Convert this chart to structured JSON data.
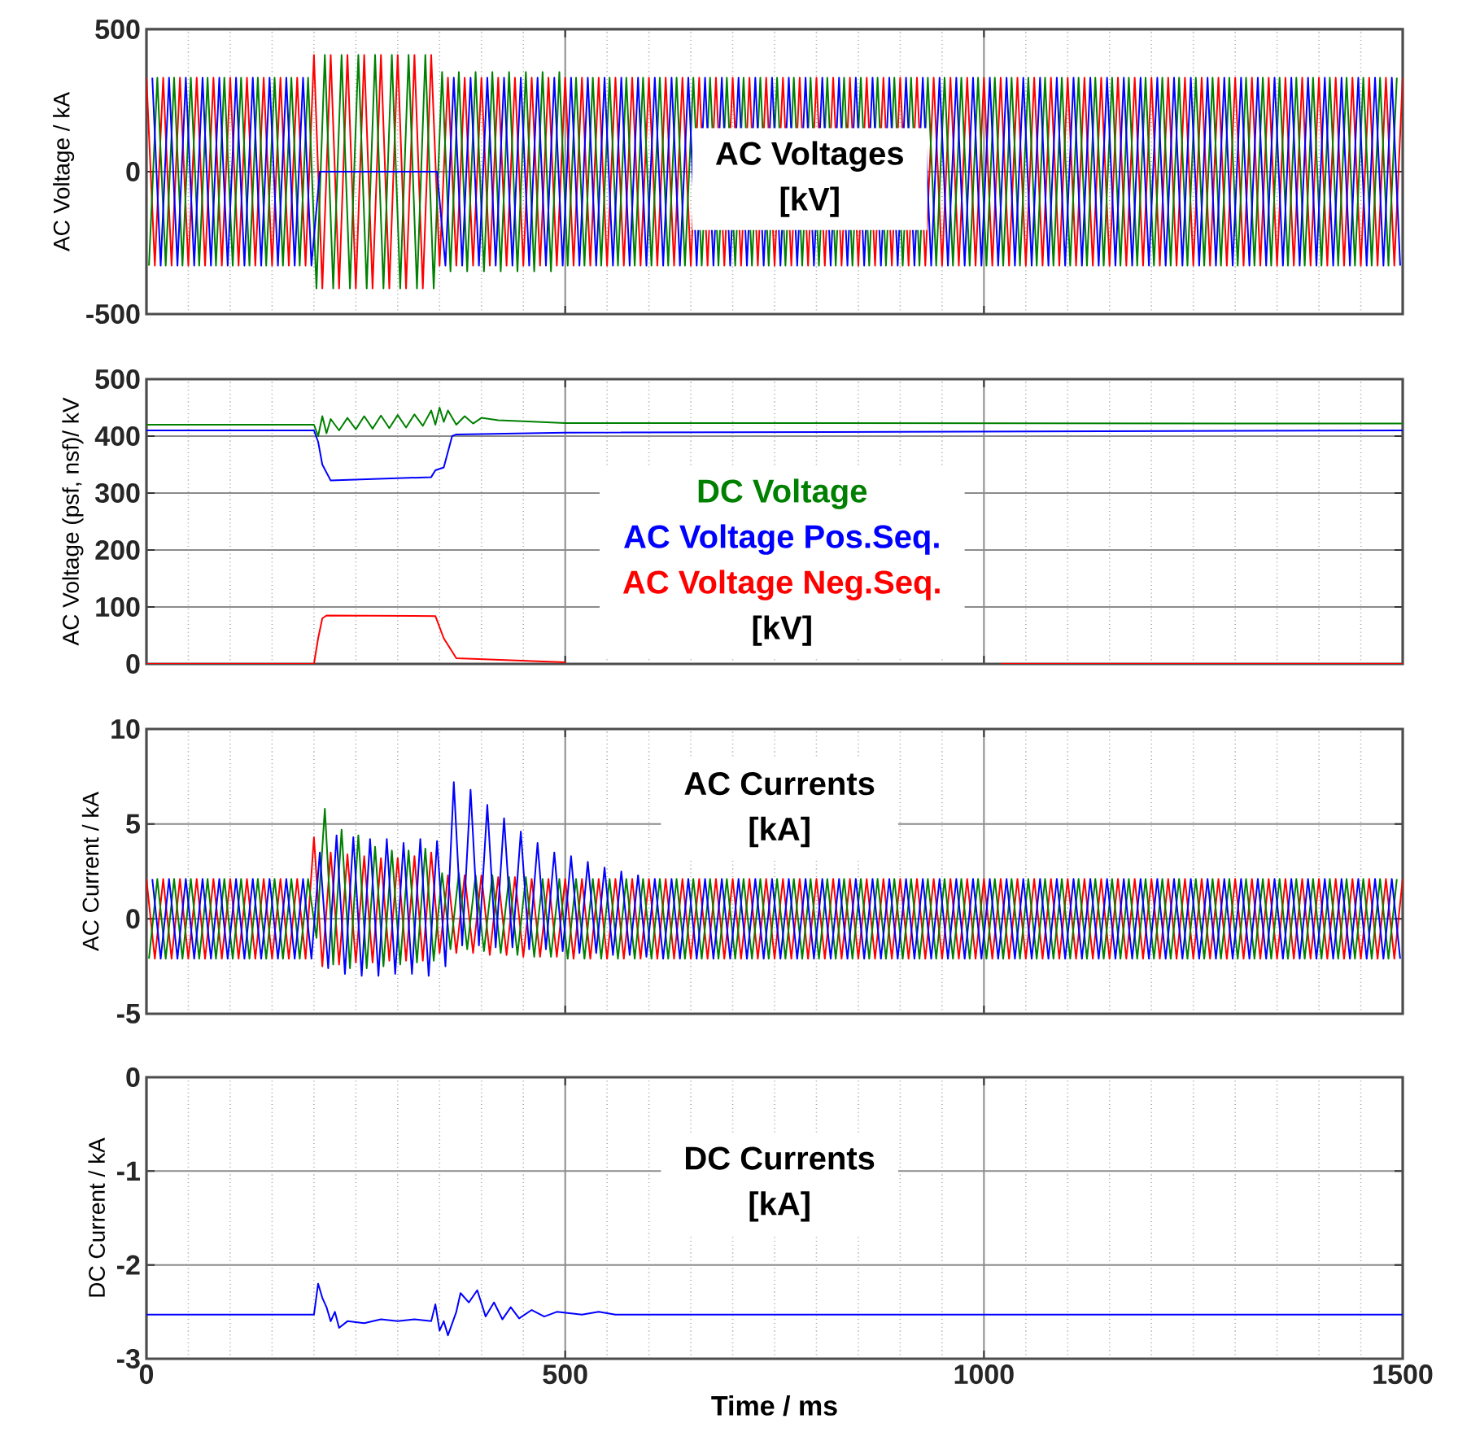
{
  "chart_data": [
    {
      "type": "line",
      "title": "AC Voltages",
      "annotations": [
        "[kV]"
      ],
      "ylabel": "AC Voltage / kA",
      "xlim": [
        0,
        1500
      ],
      "xticks": [
        0,
        500,
        1000,
        1500
      ],
      "ylim": [
        -500,
        500
      ],
      "yticks": [
        -500,
        0,
        500
      ],
      "grid": true,
      "tick_labels": "y",
      "series": [
        {
          "color": "#ff0000",
          "x": [
            0,
            10,
            20,
            30,
            40,
            50,
            60,
            70,
            80,
            90,
            100,
            110,
            120,
            130,
            140,
            150,
            160,
            170,
            180,
            190,
            200,
            210,
            220,
            230,
            240,
            250,
            260,
            270,
            280,
            290,
            300,
            310,
            320,
            330,
            340,
            350,
            360,
            370,
            380,
            390,
            400,
            410,
            420,
            430,
            440,
            450,
            460,
            470,
            480,
            490,
            500,
            510,
            520,
            530,
            540,
            550,
            560,
            570,
            580,
            590,
            600,
            610,
            620,
            630,
            640,
            650,
            660,
            670,
            680,
            690,
            700,
            710,
            720,
            730,
            740,
            750,
            760,
            770,
            780,
            790,
            800,
            810,
            820,
            830,
            840,
            850,
            860,
            870,
            880,
            890,
            900,
            910,
            920,
            930,
            940,
            950,
            960,
            970,
            980,
            990,
            1000,
            1010,
            1020,
            1030,
            1040,
            1050,
            1060,
            1070,
            1080,
            1090,
            1100,
            1110,
            1120,
            1130,
            1140,
            1150,
            1160,
            1170,
            1180,
            1190,
            1200,
            1210,
            1220,
            1230,
            1240,
            1250,
            1260,
            1270,
            1280,
            1290,
            1300,
            1310,
            1320,
            1330,
            1340,
            1350,
            1360,
            1370,
            1380,
            1390,
            1400,
            1410,
            1420,
            1430,
            1440,
            1450,
            1460,
            1470,
            1480,
            1490,
            1500
          ],
          "values": [
            330,
            -330,
            330,
            -330,
            330,
            -330,
            330,
            -330,
            330,
            -330,
            330,
            -330,
            330,
            -330,
            330,
            -330,
            330,
            -330,
            330,
            -330,
            410,
            -410,
            410,
            -410,
            410,
            -410,
            410,
            -410,
            410,
            -410,
            410,
            -410,
            410,
            -410,
            410,
            -330,
            330,
            -330,
            330,
            -330,
            330,
            -330,
            330,
            -330,
            330,
            -330,
            330,
            -330,
            330,
            -330,
            330,
            -330,
            330,
            -330,
            330,
            -330,
            330,
            -330,
            330,
            -330,
            330,
            -330,
            330,
            -330,
            330,
            -330,
            330,
            -330,
            330,
            -330,
            330,
            -330,
            330,
            -330,
            330,
            -330,
            330,
            -330,
            330,
            -330,
            330,
            -330,
            330,
            -330,
            330,
            -330,
            330,
            -330,
            330,
            -330,
            330,
            -330,
            330,
            -330,
            330,
            -330,
            330,
            -330,
            330,
            -330,
            330,
            -330,
            330,
            -330,
            330,
            -330,
            330,
            -330,
            330,
            -330,
            330,
            -330,
            330,
            -330,
            330,
            -330,
            330,
            -330,
            330,
            -330,
            330,
            -330,
            330,
            -330,
            330,
            -330,
            330,
            -330,
            330,
            -330,
            330,
            -330,
            330,
            -330,
            330,
            -330,
            330,
            -330,
            330,
            -330,
            330,
            -330,
            330,
            -330,
            330,
            -330,
            330,
            -330,
            330,
            -330,
            330
          ]
        },
        {
          "color": "#008000",
          "x": [
            3,
            13,
            23,
            33,
            43,
            53,
            63,
            73,
            83,
            93,
            103,
            113,
            123,
            133,
            143,
            153,
            163,
            173,
            183,
            193,
            203,
            213,
            223,
            233,
            243,
            253,
            263,
            273,
            283,
            293,
            303,
            313,
            323,
            333,
            343,
            353,
            363,
            373,
            383,
            393,
            403,
            413,
            423,
            433,
            443,
            453,
            463,
            473,
            483,
            493,
            503,
            513,
            523,
            533,
            543,
            553,
            563,
            573,
            583,
            593,
            603,
            613,
            623,
            633,
            643,
            653,
            663,
            673,
            683,
            693,
            703,
            713,
            723,
            733,
            743,
            753,
            763,
            773,
            783,
            793,
            803,
            813,
            823,
            833,
            843,
            853,
            863,
            873,
            883,
            893,
            903,
            913,
            923,
            933,
            943,
            953,
            963,
            973,
            983,
            993,
            1003,
            1013,
            1023,
            1033,
            1043,
            1053,
            1063,
            1073,
            1083,
            1093,
            1103,
            1113,
            1123,
            1133,
            1143,
            1153,
            1163,
            1173,
            1183,
            1193,
            1203,
            1213,
            1223,
            1233,
            1243,
            1253,
            1263,
            1273,
            1283,
            1293,
            1303,
            1313,
            1323,
            1333,
            1343,
            1353,
            1363,
            1373,
            1383,
            1393,
            1403,
            1413,
            1423,
            1433,
            1443,
            1453,
            1463,
            1473,
            1483,
            1493
          ],
          "values": [
            -330,
            330,
            -330,
            330,
            -330,
            330,
            -330,
            330,
            -330,
            330,
            -330,
            330,
            -330,
            330,
            -330,
            330,
            -330,
            330,
            -330,
            330,
            -410,
            410,
            -410,
            410,
            -410,
            410,
            -410,
            410,
            -410,
            410,
            -410,
            410,
            -410,
            410,
            -410,
            350,
            -350,
            350,
            -350,
            350,
            -350,
            350,
            -350,
            350,
            -350,
            350,
            -350,
            350,
            -350,
            350,
            -330,
            330,
            -330,
            330,
            -330,
            330,
            -330,
            330,
            -330,
            330,
            -330,
            330,
            -330,
            330,
            -330,
            330,
            -330,
            330,
            -330,
            330,
            -330,
            330,
            -330,
            330,
            -330,
            330,
            -330,
            330,
            -330,
            330,
            -330,
            330,
            -330,
            330,
            -330,
            330,
            -330,
            330,
            -330,
            330,
            -330,
            330,
            -330,
            330,
            -330,
            330,
            -330,
            330,
            -330,
            330,
            -330,
            330,
            -330,
            330,
            -330,
            330,
            -330,
            330,
            -330,
            330,
            -330,
            330,
            -330,
            330,
            -330,
            330,
            -330,
            330,
            -330,
            330,
            -330,
            330,
            -330,
            330,
            -330,
            330,
            -330,
            330,
            -330,
            330,
            -330,
            330,
            -330,
            330,
            -330,
            330,
            -330,
            330,
            -330,
            330,
            -330,
            330,
            -330,
            330,
            -330,
            330,
            -330,
            330,
            -330,
            330
          ]
        },
        {
          "color": "#0000ff",
          "x": [
            7,
            17,
            27,
            37,
            47,
            57,
            67,
            77,
            87,
            97,
            107,
            117,
            127,
            137,
            147,
            157,
            167,
            177,
            187,
            197,
            207,
            217,
            227,
            237,
            247,
            257,
            267,
            277,
            287,
            297,
            307,
            317,
            327,
            337,
            347,
            357,
            367,
            377,
            387,
            397,
            407,
            417,
            427,
            437,
            447,
            457,
            467,
            477,
            487,
            497,
            507,
            517,
            527,
            537,
            547,
            557,
            567,
            577,
            587,
            597,
            607,
            617,
            627,
            637,
            647,
            657,
            667,
            677,
            687,
            697,
            707,
            717,
            727,
            737,
            747,
            757,
            767,
            777,
            787,
            797,
            807,
            817,
            827,
            837,
            847,
            857,
            867,
            877,
            887,
            897,
            907,
            917,
            927,
            937,
            947,
            957,
            967,
            977,
            987,
            997,
            1007,
            1017,
            1027,
            1037,
            1047,
            1057,
            1067,
            1077,
            1087,
            1097,
            1107,
            1117,
            1127,
            1137,
            1147,
            1157,
            1167,
            1177,
            1187,
            1197,
            1207,
            1217,
            1227,
            1237,
            1247,
            1257,
            1267,
            1277,
            1287,
            1297,
            1307,
            1317,
            1327,
            1337,
            1347,
            1357,
            1367,
            1377,
            1387,
            1397,
            1407,
            1417,
            1427,
            1437,
            1447,
            1457,
            1467,
            1477,
            1487,
            1497
          ],
          "values": [
            330,
            -330,
            330,
            -330,
            330,
            -330,
            330,
            -330,
            330,
            -330,
            330,
            -330,
            330,
            -330,
            330,
            -330,
            330,
            -330,
            330,
            -330,
            0,
            0,
            0,
            0,
            0,
            0,
            0,
            0,
            0,
            0,
            0,
            0,
            0,
            0,
            0,
            -330,
            330,
            -330,
            330,
            -330,
            330,
            -330,
            330,
            -330,
            330,
            -330,
            330,
            -330,
            330,
            -330,
            330,
            -330,
            330,
            -330,
            330,
            -330,
            330,
            -330,
            330,
            -330,
            330,
            -330,
            330,
            -330,
            330,
            -330,
            330,
            -330,
            330,
            -330,
            330,
            -330,
            330,
            -330,
            330,
            -330,
            330,
            -330,
            330,
            -330,
            330,
            -330,
            330,
            -330,
            330,
            -330,
            330,
            -330,
            330,
            -330,
            330,
            -330,
            330,
            -330,
            330,
            -330,
            330,
            -330,
            330,
            -330,
            330,
            -330,
            330,
            -330,
            330,
            -330,
            330,
            -330,
            330,
            -330,
            330,
            -330,
            330,
            -330,
            330,
            -330,
            330,
            -330,
            330,
            -330,
            330,
            -330,
            330,
            -330,
            330,
            -330,
            330,
            -330,
            330,
            -330,
            330,
            -330,
            330,
            -330,
            330,
            -330,
            330,
            -330,
            330,
            -330,
            330,
            -330,
            330,
            -330,
            330,
            -330,
            330,
            -330,
            330,
            -330
          ]
        }
      ]
    },
    {
      "type": "line",
      "annotations": [
        "[kV]"
      ],
      "ylabel": "AC Voltage (psf, nsf)/ kV",
      "xlim": [
        0,
        1500
      ],
      "xticks": [
        0,
        500,
        1000,
        1500
      ],
      "ylim": [
        0,
        500
      ],
      "yticks": [
        0,
        100,
        200,
        300,
        400,
        500
      ],
      "grid": true,
      "tick_labels": "y",
      "series": [
        {
          "name": "DC Voltage",
          "color": "#008000",
          "x": [
            0,
            200,
            205,
            210,
            215,
            220,
            230,
            240,
            250,
            260,
            270,
            280,
            290,
            300,
            310,
            320,
            330,
            340,
            345,
            350,
            355,
            360,
            370,
            380,
            390,
            400,
            420,
            450,
            500,
            1500
          ],
          "values": [
            420,
            420,
            400,
            435,
            405,
            430,
            410,
            432,
            412,
            435,
            413,
            436,
            414,
            437,
            415,
            438,
            418,
            445,
            420,
            450,
            425,
            445,
            420,
            435,
            422,
            432,
            428,
            426,
            423,
            422
          ]
        },
        {
          "name": "AC Voltage Pos.Seq.",
          "color": "#0000ff",
          "x": [
            0,
            200,
            205,
            210,
            220,
            340,
            345,
            355,
            365,
            370,
            500,
            1500
          ],
          "values": [
            410,
            410,
            390,
            350,
            322,
            328,
            340,
            345,
            400,
            403,
            406,
            410
          ]
        },
        {
          "name": "AC Voltage Neg.Seq.",
          "color": "#ff0000",
          "x": [
            0,
            200,
            205,
            210,
            215,
            345,
            355,
            370,
            500,
            750,
            1020,
            1500
          ],
          "values": [
            0,
            0,
            45,
            80,
            85,
            84,
            45,
            10,
            3,
            null,
            0,
            0
          ]
        }
      ]
    },
    {
      "type": "line",
      "title": "AC Currents",
      "annotations": [
        "[kA]"
      ],
      "ylabel": "AC Current / kA",
      "xlim": [
        0,
        1500
      ],
      "xticks": [
        0,
        500,
        1000,
        1500
      ],
      "ylim": [
        -5,
        10
      ],
      "yticks": [
        -5,
        0,
        5,
        10
      ],
      "grid": true,
      "tick_labels": "y",
      "series": [
        {
          "color": "#ff0000",
          "x": [
            0,
            10,
            20,
            30,
            40,
            50,
            60,
            70,
            80,
            90,
            100,
            110,
            120,
            130,
            140,
            150,
            160,
            170,
            180,
            190,
            200,
            210,
            220,
            230,
            240,
            250,
            260,
            270,
            280,
            290,
            300,
            310,
            320,
            330,
            340,
            350,
            360,
            370,
            380,
            390,
            400,
            410,
            420,
            430,
            440,
            450,
            460,
            470,
            480,
            490,
            500,
            510,
            520,
            530,
            540,
            550,
            560,
            570,
            580,
            590,
            600,
            610,
            620,
            630,
            640,
            650,
            660,
            670,
            680,
            690,
            700,
            710,
            720,
            730,
            740,
            750,
            760,
            770,
            780,
            790,
            800,
            810,
            820,
            830,
            840,
            850,
            860,
            870,
            880,
            890,
            900,
            910,
            920,
            930,
            940,
            950,
            960,
            970,
            980,
            990,
            1000,
            1010,
            1020,
            1030,
            1040,
            1050,
            1060,
            1070,
            1080,
            1090,
            1100,
            1110,
            1120,
            1130,
            1140,
            1150,
            1160,
            1170,
            1180,
            1190,
            1200,
            1210,
            1220,
            1230,
            1240,
            1250,
            1260,
            1270,
            1280,
            1290,
            1300,
            1310,
            1320,
            1330,
            1340,
            1350,
            1360,
            1370,
            1380,
            1390,
            1400,
            1410,
            1420,
            1430,
            1440,
            1450,
            1460,
            1470,
            1480,
            1490,
            1500
          ],
          "values": [
            2.1,
            -2.1,
            2.1,
            -2.1,
            2.1,
            -2.1,
            2.1,
            -2.1,
            2.1,
            -2.1,
            2.1,
            -2.1,
            2.1,
            -2.1,
            2.1,
            -2.1,
            2.1,
            -2.1,
            2.1,
            -2.1,
            4.3,
            -2.5,
            3.5,
            -2.4,
            3.4,
            -2.3,
            3.3,
            -2.3,
            3.2,
            -2.2,
            3.2,
            -2.2,
            3.3,
            -2.2,
            3.5,
            -1.8,
            2.3,
            -1.8,
            2.3,
            -1.8,
            2.3,
            -1.9,
            2.2,
            -1.9,
            2.2,
            -2,
            2.1,
            -2,
            2.1,
            -2,
            2.1,
            -2.1,
            2.1,
            -2.1,
            2.1,
            -2.1,
            2.1,
            -2.1,
            2.1,
            -2.1,
            2.1,
            -2.1,
            2.1,
            -2.1,
            2.1,
            -2.1,
            2.1,
            -2.1,
            2.1,
            -2.1,
            2.1,
            -2.1,
            2.1,
            -2.1,
            2.1,
            -2.1,
            2.1,
            -2.1,
            2.1,
            -2.1,
            2.1,
            -2.1,
            2.1,
            -2.1,
            2.1,
            -2.1,
            2.1,
            -2.1,
            2.1,
            -2.1,
            2.1,
            -2.1,
            2.1,
            -2.1,
            2.1,
            -2.1,
            2.1,
            -2.1,
            2.1,
            -2.1,
            2.1,
            -2.1,
            2.1,
            -2.1,
            2.1,
            -2.1,
            2.1,
            -2.1,
            2.1,
            -2.1,
            2.1,
            -2.1,
            2.1,
            -2.1,
            2.1,
            -2.1,
            2.1,
            -2.1,
            2.1,
            -2.1,
            2.1,
            -2.1,
            2.1,
            -2.1,
            2.1,
            -2.1,
            2.1,
            -2.1,
            2.1,
            -2.1,
            2.1,
            -2.1,
            2.1,
            -2.1,
            2.1,
            -2.1,
            2.1,
            -2.1,
            2.1,
            -2.1,
            2.1,
            -2.1,
            2.1,
            -2.1,
            2.1,
            -2.1,
            2.1,
            -2.1,
            2.1,
            -2.1,
            2.1
          ]
        },
        {
          "color": "#008000",
          "x": [
            3,
            13,
            23,
            33,
            43,
            53,
            63,
            73,
            83,
            93,
            103,
            113,
            123,
            133,
            143,
            153,
            163,
            173,
            183,
            193,
            203,
            213,
            223,
            233,
            243,
            253,
            263,
            273,
            283,
            293,
            303,
            313,
            323,
            333,
            343,
            353,
            363,
            373,
            383,
            393,
            403,
            413,
            423,
            433,
            443,
            453,
            463,
            473,
            483,
            493,
            503,
            513,
            523,
            533,
            543,
            553,
            563,
            573,
            583,
            593,
            603,
            613,
            623,
            633,
            643,
            653,
            663,
            673,
            683,
            693,
            703,
            713,
            723,
            733,
            743,
            753,
            763,
            773,
            783,
            793,
            803,
            813,
            823,
            833,
            843,
            853,
            863,
            873,
            883,
            893,
            903,
            913,
            923,
            933,
            943,
            953,
            963,
            973,
            983,
            993,
            1003,
            1013,
            1023,
            1033,
            1043,
            1053,
            1063,
            1073,
            1083,
            1093,
            1103,
            1113,
            1123,
            1133,
            1143,
            1153,
            1163,
            1173,
            1183,
            1193,
            1203,
            1213,
            1223,
            1233,
            1243,
            1253,
            1263,
            1273,
            1283,
            1293,
            1303,
            1313,
            1323,
            1333,
            1343,
            1353,
            1363,
            1373,
            1383,
            1393,
            1403,
            1413,
            1423,
            1433,
            1443,
            1453,
            1463,
            1473,
            1483,
            1493
          ],
          "values": [
            -2.1,
            2.1,
            -2.1,
            2.1,
            -2.1,
            2.1,
            -2.1,
            2.1,
            -2.1,
            2.1,
            -2.1,
            2.1,
            -2.1,
            2.1,
            -2.1,
            2.1,
            -2.1,
            2.1,
            -2.1,
            2.1,
            -1,
            5.8,
            -2.4,
            4.7,
            -2.6,
            4.4,
            -2.6,
            3.8,
            -2.5,
            3.6,
            -2.4,
            3.6,
            -2.3,
            3.7,
            -2.2,
            2.4,
            -1.6,
            2.4,
            -1.6,
            2.3,
            -1.7,
            2.3,
            -1.8,
            2.2,
            -1.9,
            2.2,
            -2,
            2.1,
            -2,
            2.1,
            -2.1,
            2.1,
            -2.1,
            2.1,
            -2.1,
            2.1,
            -2.1,
            2.1,
            -2.1,
            2.1,
            -2.1,
            2.1,
            -2.1,
            2.1,
            -2.1,
            2.1,
            -2.1,
            2.1,
            -2.1,
            2.1,
            -2.1,
            2.1,
            -2.1,
            2.1,
            -2.1,
            2.1,
            -2.1,
            2.1,
            -2.1,
            2.1,
            -2.1,
            2.1,
            -2.1,
            2.1,
            -2.1,
            2.1,
            -2.1,
            2.1,
            -2.1,
            2.1,
            -2.1,
            2.1,
            -2.1,
            2.1,
            -2.1,
            2.1,
            -2.1,
            2.1,
            -2.1,
            2.1,
            -2.1,
            2.1,
            -2.1,
            2.1,
            -2.1,
            2.1,
            -2.1,
            2.1,
            -2.1,
            2.1,
            -2.1,
            2.1,
            -2.1,
            2.1,
            -2.1,
            2.1,
            -2.1,
            2.1,
            -2.1,
            2.1,
            -2.1,
            2.1,
            -2.1,
            2.1,
            -2.1,
            2.1,
            -2.1,
            2.1,
            -2.1,
            2.1,
            -2.1,
            2.1,
            -2.1,
            2.1,
            -2.1,
            2.1,
            -2.1,
            2.1,
            -2.1,
            2.1,
            -2.1,
            2.1,
            -2.1,
            2.1,
            -2.1,
            2.1,
            -2.1,
            2.1,
            -2.1,
            2.1
          ]
        },
        {
          "color": "#0000ff",
          "x": [
            7,
            17,
            27,
            37,
            47,
            57,
            67,
            77,
            87,
            97,
            107,
            117,
            127,
            137,
            147,
            157,
            167,
            177,
            187,
            197,
            207,
            217,
            227,
            237,
            247,
            257,
            267,
            277,
            287,
            297,
            307,
            317,
            327,
            337,
            347,
            357,
            367,
            377,
            387,
            397,
            407,
            417,
            427,
            437,
            447,
            457,
            467,
            477,
            487,
            497,
            507,
            517,
            527,
            537,
            547,
            557,
            567,
            577,
            587,
            597,
            607,
            617,
            627,
            637,
            647,
            657,
            667,
            677,
            687,
            697,
            707,
            717,
            727,
            737,
            747,
            757,
            767,
            777,
            787,
            797,
            807,
            817,
            827,
            837,
            847,
            857,
            867,
            877,
            887,
            897,
            907,
            917,
            927,
            937,
            947,
            957,
            967,
            977,
            987,
            997,
            1007,
            1017,
            1027,
            1037,
            1047,
            1057,
            1067,
            1077,
            1087,
            1097,
            1107,
            1117,
            1127,
            1137,
            1147,
            1157,
            1167,
            1177,
            1187,
            1197,
            1207,
            1217,
            1227,
            1237,
            1247,
            1257,
            1267,
            1277,
            1287,
            1297,
            1307,
            1317,
            1327,
            1337,
            1347,
            1357,
            1367,
            1377,
            1387,
            1397,
            1407,
            1417,
            1427,
            1437,
            1447,
            1457,
            1467,
            1477,
            1487,
            1497
          ],
          "values": [
            2.1,
            -2.1,
            2.1,
            -2.1,
            2.1,
            -2.1,
            2.1,
            -2.1,
            2.1,
            -2.1,
            2.1,
            -2.1,
            2.1,
            -2.1,
            2.1,
            -2.1,
            2.1,
            -2.1,
            2.1,
            -2.1,
            3.5,
            -2.6,
            4.4,
            -2.9,
            4.3,
            -3,
            4.2,
            -3,
            4.2,
            -2.9,
            4,
            -2.9,
            4.2,
            -3,
            4.1,
            -2.5,
            7.2,
            -1.4,
            6.8,
            -1.4,
            6,
            -1.5,
            5.3,
            -1.5,
            4.6,
            -1.6,
            4,
            -1.6,
            3.5,
            -1.7,
            3.3,
            -1.8,
            3,
            -1.8,
            2.7,
            -1.9,
            2.5,
            -1.9,
            2.3,
            -2,
            2.1,
            -2.1,
            2.1,
            -2.1,
            2.1,
            -2.1,
            2.1,
            -2.1,
            2.1,
            -2.1,
            2.1,
            -2.1,
            2.1,
            -2.1,
            2.1,
            -2.1,
            2.1,
            -2.1,
            2.1,
            -2.1,
            2.1,
            -2.1,
            2.1,
            -2.1,
            2.1,
            -2.1,
            2.1,
            -2.1,
            2.1,
            -2.1,
            2.1,
            -2.1,
            2.1,
            -2.1,
            2.1,
            -2.1,
            2.1,
            -2.1,
            2.1,
            -2.1,
            2.1,
            -2.1,
            2.1,
            -2.1,
            2.1,
            -2.1,
            2.1,
            -2.1,
            2.1,
            -2.1,
            2.1,
            -2.1,
            2.1,
            -2.1,
            2.1,
            -2.1,
            2.1,
            -2.1,
            2.1,
            -2.1,
            2.1,
            -2.1,
            2.1,
            -2.1,
            2.1,
            -2.1,
            2.1,
            -2.1,
            2.1,
            -2.1,
            2.1,
            -2.1,
            2.1,
            -2.1,
            2.1,
            -2.1,
            2.1,
            -2.1,
            2.1,
            -2.1,
            2.1,
            -2.1,
            2.1,
            -2.1,
            2.1,
            -2.1,
            2.1,
            -2.1,
            2.1,
            -2.1
          ]
        }
      ]
    },
    {
      "type": "line",
      "title": "DC Currents",
      "annotations": [
        "[kA]"
      ],
      "xlabel": "Time / ms",
      "ylabel": "DC Current / kA",
      "xlim": [
        0,
        1500
      ],
      "xticks": [
        0,
        500,
        1000,
        1500
      ],
      "ylim": [
        -3,
        0
      ],
      "yticks": [
        -3,
        -2,
        -1,
        0
      ],
      "grid": true,
      "series": [
        {
          "color": "#0000ff",
          "x": [
            0,
            200,
            205,
            210,
            215,
            220,
            225,
            230,
            240,
            260,
            280,
            300,
            320,
            340,
            345,
            350,
            355,
            360,
            370,
            375,
            385,
            395,
            405,
            415,
            425,
            435,
            445,
            460,
            475,
            490,
            520,
            540,
            560,
            1500
          ],
          "values": [
            -2.53,
            -2.53,
            -2.2,
            -2.35,
            -2.45,
            -2.6,
            -2.5,
            -2.67,
            -2.6,
            -2.62,
            -2.58,
            -2.6,
            -2.58,
            -2.6,
            -2.42,
            -2.7,
            -2.6,
            -2.75,
            -2.5,
            -2.3,
            -2.4,
            -2.27,
            -2.55,
            -2.4,
            -2.58,
            -2.45,
            -2.57,
            -2.48,
            -2.55,
            -2.5,
            -2.53,
            -2.5,
            -2.53,
            -2.53
          ]
        }
      ]
    }
  ]
}
